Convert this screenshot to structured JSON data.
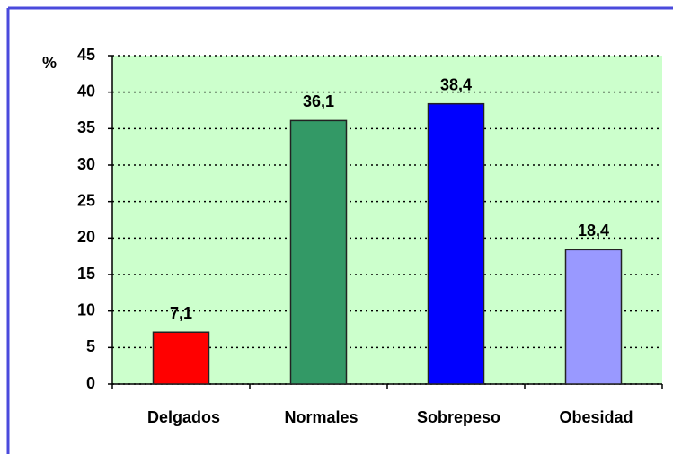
{
  "chart_data": {
    "type": "bar",
    "y_label": "%",
    "categories": [
      "Delgados",
      "Normales",
      "Sobrepeso",
      "Obesidad"
    ],
    "values": [
      7.1,
      36.1,
      38.4,
      18.4
    ],
    "value_labels": [
      "7,1",
      "36,1",
      "38,4",
      "18,4"
    ],
    "colors": [
      "#ff0000",
      "#339966",
      "#0000ff",
      "#9999ff"
    ],
    "ylim": [
      0,
      45
    ],
    "yticks": [
      0,
      5,
      10,
      15,
      20,
      25,
      30,
      35,
      40,
      45
    ],
    "grid": true
  }
}
